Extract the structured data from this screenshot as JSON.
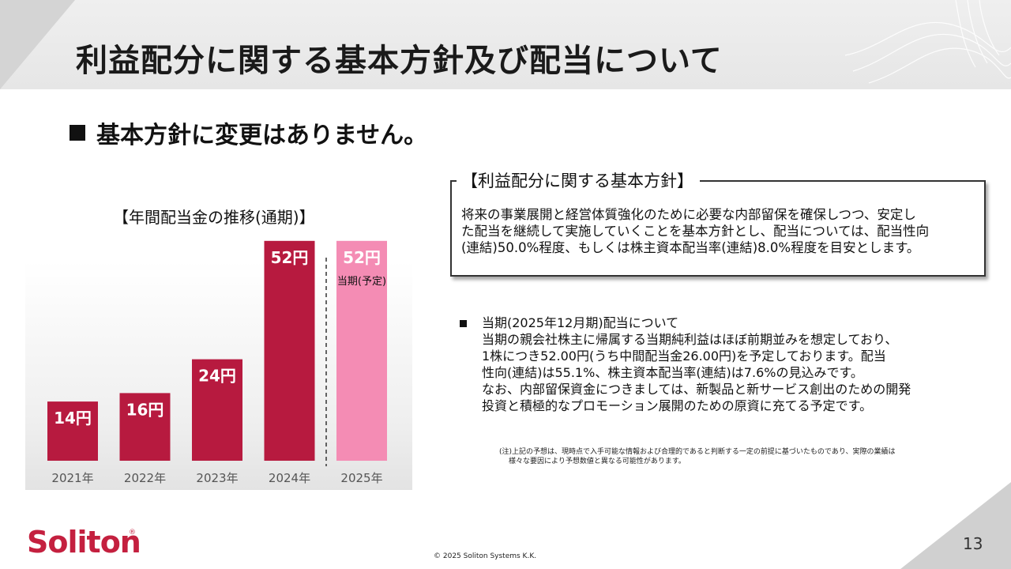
{
  "header": {
    "title": "利益配分に関する基本方針及び配当について"
  },
  "subheading": "基本方針に変更はありません。",
  "chart_data": {
    "type": "bar",
    "title": "【年間配当金の推移(通期)】",
    "categories": [
      "2021年",
      "2022年",
      "2023年",
      "2024年",
      "2025年"
    ],
    "values": [
      14,
      16,
      24,
      52,
      52
    ],
    "value_labels": [
      "14円",
      "16円",
      "24円",
      "52円",
      "52円"
    ],
    "forecast_label": "当期(予定)",
    "colors": {
      "actual": "#b71a3f",
      "forecast": "#f48cb4"
    },
    "ylim": [
      0,
      60
    ],
    "grid": false
  },
  "policy": {
    "label": "【利益配分に関する基本方針】",
    "lines": [
      "将来の事業展開と経営体質強化のために必要な内部留保を確保しつつ、安定し",
      "た配当を継続して実施していくことを基本方針とし、配当については、配当性向",
      "(連結)50.0%程度、もしくは株主資本配当率(連結)8.0%程度を目安とします。"
    ]
  },
  "dividend": {
    "lines": [
      "当期(2025年12月期)配当について",
      "当期の親会社株主に帰属する当期純利益はほぼ前期並みを想定しており、",
      "1株につき52.00円(うち中間配当金26.00円)を予定しております。配当",
      "性向(連結)は55.1%、株主資本配当率(連結)は7.6%の見込みです。",
      "なお、内部留保資金につきましては、新製品と新サービス創出のための開発",
      "投資と積極的なプロモーション展開のための原資に充てる予定です。"
    ]
  },
  "note": {
    "line1": "(注)上記の予想は、現時点で入手可能な情報および合理的であると判断する一定の前提に基づいたものであり、実際の業績は",
    "line2": "様々な要因により予想数値と異なる可能性があります。"
  },
  "footer": {
    "logo": "Soliton",
    "registered": "®",
    "copyright": "© 2025 Soliton Systems K.K.",
    "page_number": "13"
  },
  "colors": {
    "brand": "#c4203f"
  }
}
